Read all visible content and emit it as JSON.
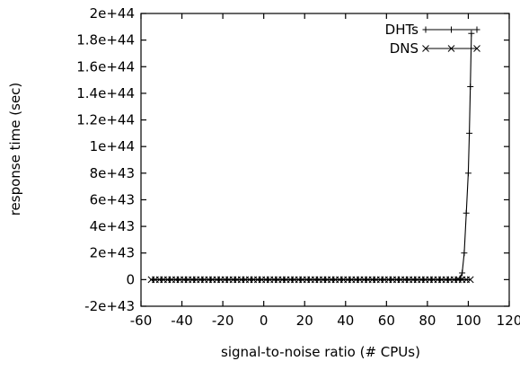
{
  "chart_data": {
    "type": "line",
    "xlabel": "signal-to-noise ratio (# CPUs)",
    "ylabel": "response time (sec)",
    "xlim": [
      -60,
      120
    ],
    "ylim": [
      -2e+43,
      2e+44
    ],
    "x_ticks": [
      -60,
      -40,
      -20,
      0,
      20,
      40,
      60,
      80,
      100,
      120
    ],
    "x_tick_labels": [
      "-60",
      "-40",
      "-20",
      "0",
      "20",
      "40",
      "60",
      "80",
      "100",
      "120"
    ],
    "y_ticks": [
      -2e+43,
      0,
      2e+43,
      4e+43,
      6e+43,
      8e+43,
      1e+44,
      1.2e+44,
      1.4e+44,
      1.6e+44,
      1.8e+44,
      2e+44
    ],
    "y_tick_labels": [
      "-2e+43",
      "0",
      "2e+43",
      "4e+43",
      "6e+43",
      "8e+43",
      "1e+44",
      "1.2e+44",
      "1.4e+44",
      "1.6e+44",
      "1.8e+44",
      "2e+44"
    ],
    "legend_position": "top-right",
    "grid": false,
    "series": [
      {
        "name": "DHTs",
        "marker": "plus",
        "color": "#000000",
        "x": [
          -54,
          -50,
          -46,
          -42,
          -38,
          -34,
          -30,
          -26,
          -22,
          -18,
          -14,
          -10,
          -6,
          -2,
          2,
          6,
          10,
          14,
          18,
          22,
          26,
          30,
          34,
          38,
          42,
          46,
          50,
          54,
          58,
          62,
          66,
          70,
          74,
          78,
          82,
          86,
          90,
          94,
          96,
          97,
          98,
          99,
          100,
          100.5,
          101,
          101.5
        ],
        "y": [
          0,
          0,
          0,
          0,
          0,
          0,
          0,
          0,
          0,
          0,
          0,
          0,
          0,
          0,
          0,
          0,
          0,
          0,
          0,
          0,
          0,
          0,
          0,
          0,
          0,
          0,
          0,
          0,
          0,
          0,
          0,
          0,
          0,
          0,
          0,
          0,
          0,
          0,
          1e+42,
          5e+42,
          2e+43,
          5e+43,
          8e+43,
          1.1e+44,
          1.45e+44,
          1.85e+44
        ]
      },
      {
        "name": "DNS",
        "marker": "cross",
        "color": "#000000",
        "x": [
          -55,
          -53,
          -51,
          -49,
          -47,
          -45,
          -43,
          -41,
          -39,
          -37,
          -35,
          -33,
          -31,
          -29,
          -27,
          -25,
          -23,
          -21,
          -19,
          -17,
          -15,
          -13,
          -11,
          -9,
          -7,
          -5,
          -3,
          -1,
          1,
          3,
          5,
          7,
          9,
          11,
          13,
          15,
          17,
          19,
          21,
          23,
          25,
          27,
          29,
          31,
          33,
          35,
          37,
          39,
          41,
          43,
          45,
          47,
          49,
          51,
          53,
          55,
          57,
          59,
          61,
          63,
          65,
          67,
          69,
          71,
          73,
          75,
          77,
          79,
          81,
          83,
          85,
          87,
          89,
          91,
          93,
          95,
          97,
          99,
          101
        ],
        "y": [
          0,
          0,
          0,
          0,
          0,
          0,
          0,
          0,
          0,
          0,
          0,
          0,
          0,
          0,
          0,
          0,
          0,
          0,
          0,
          0,
          0,
          0,
          0,
          0,
          0,
          0,
          0,
          0,
          0,
          0,
          0,
          0,
          0,
          0,
          0,
          0,
          0,
          0,
          0,
          0,
          0,
          0,
          0,
          0,
          0,
          0,
          0,
          0,
          0,
          0,
          0,
          0,
          0,
          0,
          0,
          0,
          0,
          0,
          0,
          0,
          0,
          0,
          0,
          0,
          0,
          0,
          0,
          0,
          0,
          0,
          0,
          0,
          0,
          0,
          0,
          0,
          0,
          0,
          0
        ]
      }
    ]
  }
}
